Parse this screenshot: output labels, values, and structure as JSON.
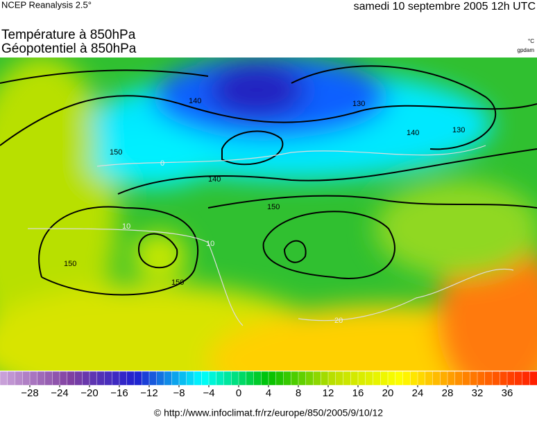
{
  "header": {
    "source": "NCEP Reanalysis 2.5°",
    "date": "samedi 10 septembre 2005 12h UTC"
  },
  "title": {
    "line1": "Température à 850hPa",
    "line2": "Géopotentiel à 850hPa"
  },
  "units": {
    "temperature": "°C",
    "geopotential": "gpdam"
  },
  "contour_labels": [
    "140",
    "130",
    "130",
    "140",
    "140",
    "150",
    "150",
    "150",
    "150",
    "0",
    "10",
    "10",
    "20"
  ],
  "colorbar": {
    "min": -32,
    "max": 40,
    "colors": [
      "#c8a0d8",
      "#8040a0",
      "#2020d0",
      "#00ffff",
      "#00c000",
      "#c0e000",
      "#ffff00",
      "#ff8000",
      "#ff2000"
    ],
    "ticks": [
      {
        "value": -28,
        "label": "−28"
      },
      {
        "value": -24,
        "label": "−24"
      },
      {
        "value": -20,
        "label": "−20"
      },
      {
        "value": -16,
        "label": "−16"
      },
      {
        "value": -12,
        "label": "−12"
      },
      {
        "value": -8,
        "label": "−8"
      },
      {
        "value": -4,
        "label": "−4"
      },
      0,
      4,
      8,
      12,
      16,
      20,
      24,
      28,
      32,
      36
    ]
  },
  "footer": "© http://www.infoclimat.fr/rz/europe/850/2005/9/10/12"
}
